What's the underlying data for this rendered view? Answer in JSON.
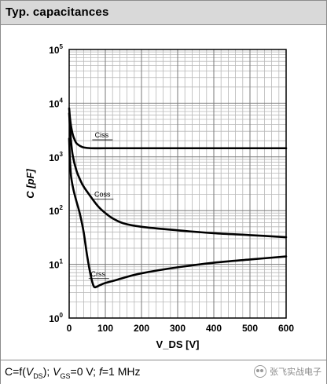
{
  "title": "Typ. capacitances",
  "caption": {
    "prefix": "C=f(",
    "v1": "V",
    "v1_sub": "DS",
    "mid": "); ",
    "v2": "V",
    "v2_sub": "GS",
    "eq1": "=0 V; ",
    "f": "f",
    "eq2": "=1 MHz"
  },
  "watermark": "张飞实战电子",
  "chart_data": {
    "type": "line",
    "title": "Typ. capacitances",
    "xlabel": "V_DS [V]",
    "ylabel": "C [pF]",
    "xlim": [
      0,
      600
    ],
    "ylim": [
      1,
      100000
    ],
    "y_scale": "log",
    "grid": true,
    "x_ticks": [
      0,
      100,
      200,
      300,
      400,
      500,
      600
    ],
    "x_tick_labels": [
      "0",
      "100",
      "200",
      "300",
      "400",
      "500",
      "600"
    ],
    "y_ticks": [
      1,
      10,
      100,
      1000,
      10000,
      100000
    ],
    "y_tick_labels": [
      {
        "base": "10",
        "exp": "0"
      },
      {
        "base": "10",
        "exp": "1"
      },
      {
        "base": "10",
        "exp": "2"
      },
      {
        "base": "10",
        "exp": "3"
      },
      {
        "base": "10",
        "exp": "4"
      },
      {
        "base": "10",
        "exp": "5"
      }
    ],
    "series": [
      {
        "name": "Ciss",
        "label_at": [
          90,
          2300
        ],
        "x": [
          0,
          2,
          5,
          10,
          15,
          20,
          30,
          40,
          60,
          100,
          200,
          300,
          400,
          500,
          600
        ],
        "y": [
          8000,
          5500,
          3800,
          2600,
          2100,
          1800,
          1600,
          1500,
          1450,
          1450,
          1450,
          1450,
          1450,
          1450,
          1450
        ]
      },
      {
        "name": "Coss",
        "label_at": [
          92,
          180
        ],
        "x": [
          0,
          2,
          5,
          10,
          20,
          30,
          40,
          60,
          80,
          100,
          120,
          150,
          200,
          300,
          400,
          500,
          600
        ],
        "y": [
          6500,
          3800,
          2000,
          1050,
          560,
          380,
          280,
          180,
          120,
          90,
          72,
          58,
          50,
          43,
          38,
          35,
          32
        ]
      },
      {
        "name": "Crss",
        "label_at": [
          80,
          6
        ],
        "x": [
          0,
          2,
          5,
          10,
          15,
          20,
          30,
          40,
          50,
          60,
          68,
          75,
          85,
          100,
          130,
          150,
          200,
          300,
          400,
          500,
          600
        ],
        "y": [
          2200,
          900,
          450,
          280,
          200,
          150,
          85,
          40,
          14,
          6,
          3.9,
          3.8,
          4.1,
          4.5,
          5.1,
          5.6,
          6.8,
          8.8,
          10.7,
          12.3,
          14
        ]
      }
    ]
  }
}
